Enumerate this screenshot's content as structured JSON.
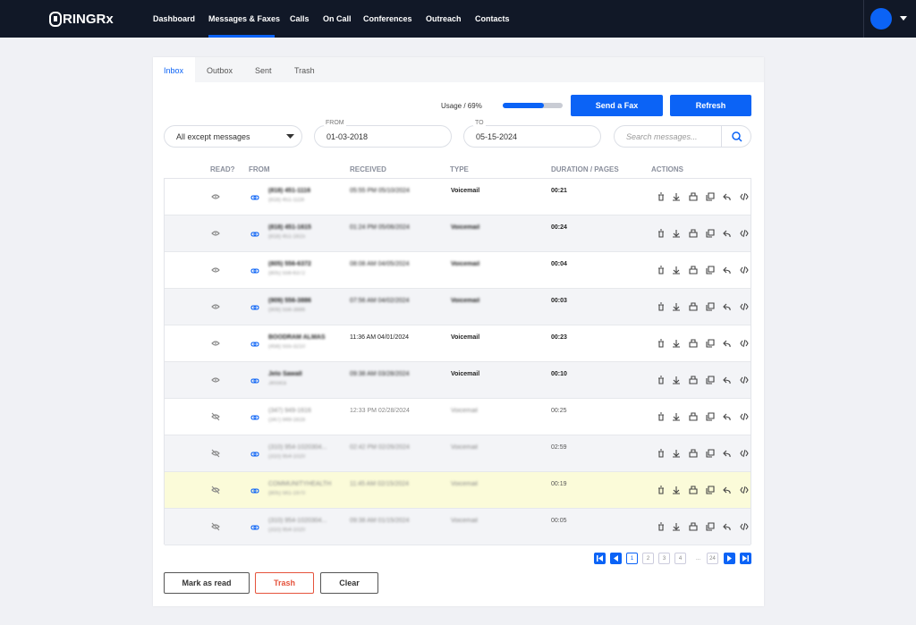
{
  "header": {
    "logo": "RINGRx",
    "nav": [
      "Dashboard",
      "Messages & Faxes",
      "Calls",
      "On Call",
      "Conferences",
      "Outreach",
      "Contacts"
    ],
    "active_nav": 1
  },
  "tabs": [
    "Inbox",
    "Outbox",
    "Sent",
    "Trash"
  ],
  "usage": {
    "label": "Usage / 69%",
    "percent": 69
  },
  "buttons": {
    "send_fax": "Send a Fax",
    "refresh": "Refresh"
  },
  "filters": {
    "type": "All except messages",
    "from_label": "FROM",
    "from": "01-03-2018",
    "to_label": "TO",
    "to": "05-15-2024",
    "search_placeholder": "Search messages..."
  },
  "columns": [
    "READ?",
    "FROM",
    "RECEIVED",
    "TYPE",
    "DURATION / PAGES",
    "ACTIONS"
  ],
  "rows": [
    {
      "from": "(818) 451-1116",
      "from_sub": "(818) 451-1116",
      "received": "05:55 PM 05/10/2024",
      "type": "Voicemail",
      "duration": "00:21",
      "read": false
    },
    {
      "from": "(818) 451-1615",
      "from_sub": "(818) 451-1615",
      "received": "01:24 PM 05/06/2024",
      "type": "Voicemail",
      "duration": "00:24",
      "read": false
    },
    {
      "from": "(805) 556-6372",
      "from_sub": "(805) 556-6372",
      "received": "08:08 AM 04/05/2024",
      "type": "Voicemail",
      "duration": "00:04",
      "read": false
    },
    {
      "from": "(909) 556-3886",
      "from_sub": "(909) 556-3886",
      "received": "07:56 AM 04/02/2024",
      "type": "Voicemail",
      "duration": "00:03",
      "read": false
    },
    {
      "from": "BOODRAM ALMAS",
      "from_sub": "(458) 555-3210",
      "received": "11:36 AM 04/01/2024",
      "type": "Voicemail",
      "duration": "00:23",
      "read": false
    },
    {
      "from": "Jelo Sawall",
      "from_sub": "Jessica",
      "received": "09:38 AM 03/28/2024",
      "type": "Voicemail",
      "duration": "00:10",
      "read": false
    },
    {
      "from": "(347) 949-1616",
      "from_sub": "(347) 949-1616",
      "received": "12:33 PM 02/28/2024",
      "type": "Voicemail",
      "duration": "00:25",
      "read": true
    },
    {
      "from": "(310) 954-1020304...",
      "from_sub": "(310) 954-1020",
      "received": "02:42 PM 02/26/2024",
      "type": "Voicemail",
      "duration": "02:59",
      "read": true
    },
    {
      "from": "COMMUNITYHEALTH",
      "from_sub": "(805) 561-1970",
      "received": "11:45 AM 02/15/2024",
      "type": "Voicemail",
      "duration": "00:19",
      "read": true
    },
    {
      "from": "(310) 954-1020304...",
      "from_sub": "(310) 954-1020",
      "received": "09:38 AM 01/15/2024",
      "type": "Voicemail",
      "duration": "00:05",
      "read": true
    }
  ],
  "highlight_row": 8,
  "pagination": [
    "1",
    "2",
    "3",
    "4",
    "...",
    "24"
  ],
  "active_page": 0,
  "footer_buttons": {
    "mark_read": "Mark as read",
    "trash": "Trash",
    "clear": "Clear"
  }
}
